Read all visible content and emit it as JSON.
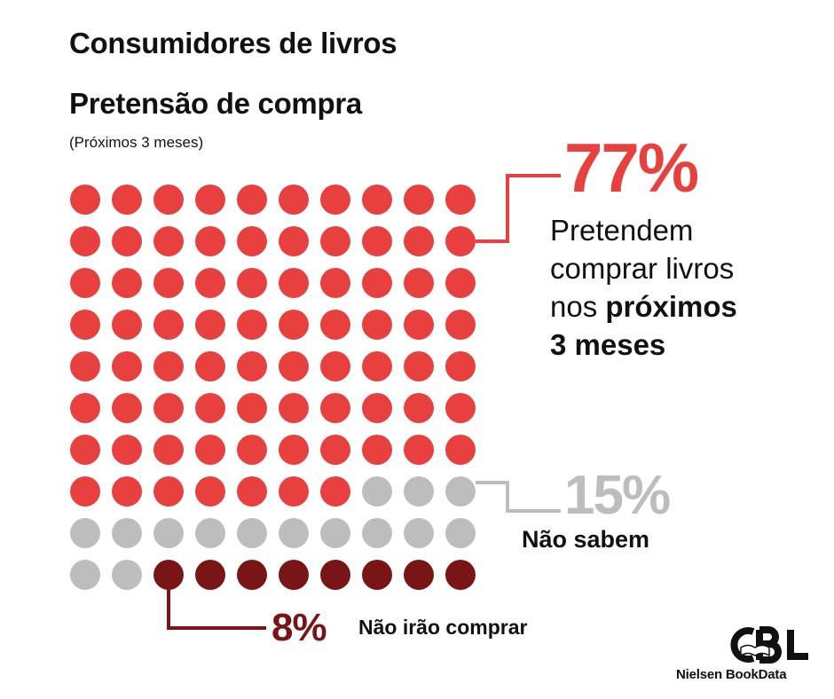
{
  "chart_data": {
    "type": "waffle",
    "title": "Consumidores de livros",
    "subtitle": "Pretensão de compra",
    "note": "(Próximos 3 meses)",
    "rows": 10,
    "cols": 10,
    "segments": [
      {
        "value": 77,
        "label": "77%",
        "description": "Pretendem comprar livros nos próximos 3 meses",
        "color": "#e8403f"
      },
      {
        "value": 15,
        "label": "15%",
        "description": "Não sabem",
        "color": "#bdbdbd"
      },
      {
        "value": 8,
        "label": "8%",
        "description": "Não irão comprar",
        "color": "#7a1517"
      }
    ]
  },
  "labels": {
    "main_desc_line1": "Pretendem",
    "main_desc_line2": "comprar livros",
    "main_desc_line3a": "nos ",
    "main_desc_line3b": "próximos",
    "main_desc_line4": "3 meses"
  },
  "logo": {
    "icon": "cbl-logo-icon",
    "text": "CBL"
  },
  "brand": "Nielsen BookData"
}
